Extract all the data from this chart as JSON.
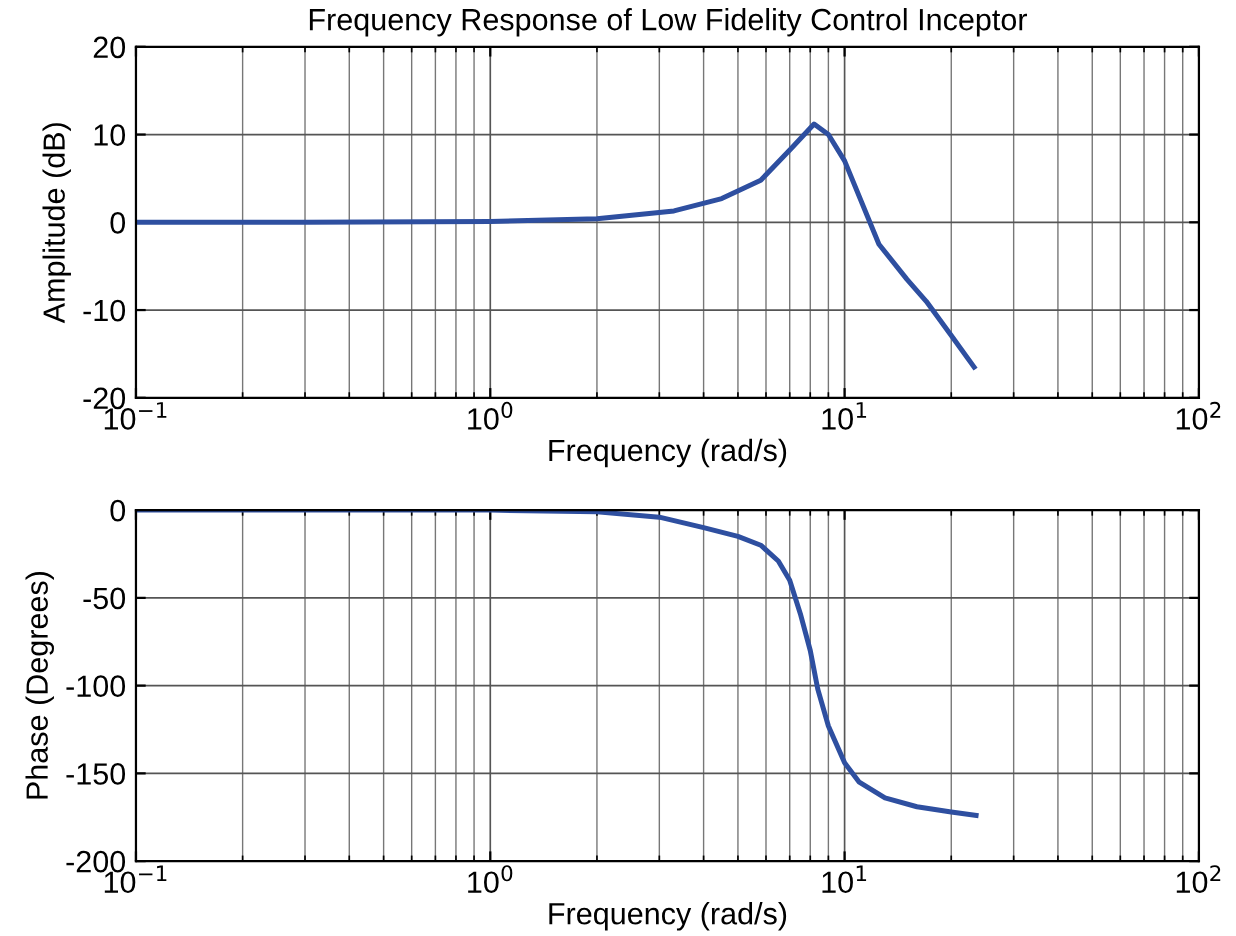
{
  "chart_data": [
    {
      "type": "line",
      "title": "Frequency Response of Low Fidelity Control Inceptor",
      "xlabel": "Frequency (rad/s)",
      "ylabel": "Amplitude (dB)",
      "log": "x",
      "grid": true,
      "xlim": [
        0.1,
        100
      ],
      "xticks": [
        {
          "value": 0.1,
          "label": "10$^{−1}$"
        },
        {
          "value": 1,
          "label": "10$^{0}$"
        },
        {
          "value": 10,
          "label": "10$^{1}$"
        },
        {
          "value": 100,
          "label": "10$^{2}$"
        }
      ],
      "ylim": [
        -20,
        20
      ],
      "yticks": [
        -20,
        -10,
        0,
        10,
        20
      ],
      "series": [
        {
          "color": "#2e4fa0",
          "x": [
            0.1,
            0.3,
            1,
            2,
            3.3,
            4.5,
            5.8,
            7.1,
            8.2,
            9,
            10,
            12.5,
            15,
            17,
            20,
            23.2
          ],
          "values": [
            0,
            0,
            0.1,
            0.4,
            1.3,
            2.7,
            4.8,
            8.5,
            11.2,
            10,
            7,
            -2.5,
            -6.5,
            -9,
            -12.9,
            -16.5
          ]
        }
      ]
    },
    {
      "type": "line",
      "xlabel": "Frequency (rad/s)",
      "ylabel": "Phase (Degrees)",
      "log": "x",
      "grid": true,
      "xlim": [
        0.1,
        100
      ],
      "xticks": [
        {
          "value": 0.1,
          "label": "10$^{−1}$"
        },
        {
          "value": 1,
          "label": "10$^{0}$"
        },
        {
          "value": 10,
          "label": "10$^{1}$"
        },
        {
          "value": 100,
          "label": "10$^{2}$"
        }
      ],
      "ylim": [
        -200,
        0
      ],
      "yticks": [
        -200,
        -150,
        -100,
        -50,
        0
      ],
      "series": [
        {
          "color": "#2e4fa0",
          "x": [
            0.1,
            0.3,
            1,
            2,
            3,
            4,
            5,
            5.8,
            6.5,
            7,
            7.5,
            8,
            8.4,
            9,
            10,
            11,
            13,
            16,
            20,
            23.5
          ],
          "values": [
            0,
            0,
            0,
            -1,
            -4,
            -10,
            -15,
            -20,
            -29,
            -40,
            -59,
            -80,
            -102,
            -123,
            -144,
            -155,
            -164,
            -169,
            -172,
            -174
          ]
        }
      ]
    }
  ]
}
